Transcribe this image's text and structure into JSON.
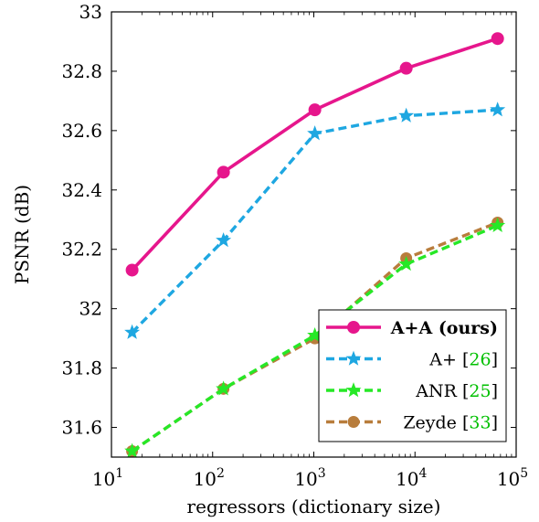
{
  "chart_data": {
    "type": "line",
    "xscale": "log",
    "xlabel": "regressors (dictionary size)",
    "ylabel": "PSNR (dB)",
    "xlim": [
      10,
      100000
    ],
    "ylim": [
      31.5,
      33.0
    ],
    "x_ticks": [
      {
        "value": 10,
        "base": "10",
        "exp": "1"
      },
      {
        "value": 100,
        "base": "10",
        "exp": "2"
      },
      {
        "value": 1000,
        "base": "10",
        "exp": "3"
      },
      {
        "value": 10000,
        "base": "10",
        "exp": "4"
      },
      {
        "value": 100000,
        "base": "10",
        "exp": "5"
      }
    ],
    "y_ticks": [
      {
        "value": 31.6,
        "label": "31.6"
      },
      {
        "value": 31.8,
        "label": "31.8"
      },
      {
        "value": 32.0,
        "label": "32"
      },
      {
        "value": 32.2,
        "label": "32.2"
      },
      {
        "value": 32.4,
        "label": "32.4"
      },
      {
        "value": 32.6,
        "label": "32.6"
      },
      {
        "value": 32.8,
        "label": "32.8"
      },
      {
        "value": 33.0,
        "label": "33"
      }
    ],
    "grid": false,
    "legend_position": "bottom-right",
    "x": [
      16,
      128,
      1024,
      8192,
      65536
    ],
    "series": [
      {
        "name": "A+A (ours)",
        "ref": "",
        "values": [
          32.13,
          32.46,
          32.67,
          32.81,
          32.91
        ],
        "color": "#e6168c",
        "dash": "solid",
        "marker": "circle",
        "bold": true
      },
      {
        "name": "A+ [",
        "ref": "26",
        "values": [
          31.92,
          32.23,
          32.59,
          32.65,
          32.67
        ],
        "color": "#1ea7e1",
        "dash": "dashed",
        "marker": "star",
        "bold": false
      },
      {
        "name": "ANR [",
        "ref": "25",
        "values": [
          31.52,
          31.73,
          31.91,
          32.15,
          32.28
        ],
        "color": "#26e826",
        "dash": "dashed",
        "marker": "star",
        "bold": false
      },
      {
        "name": "Zeyde [",
        "ref": "33",
        "values": [
          31.52,
          31.73,
          31.9,
          32.17,
          32.29
        ],
        "color": "#b87d3c",
        "dash": "dashed",
        "marker": "circle",
        "bold": false
      }
    ]
  }
}
